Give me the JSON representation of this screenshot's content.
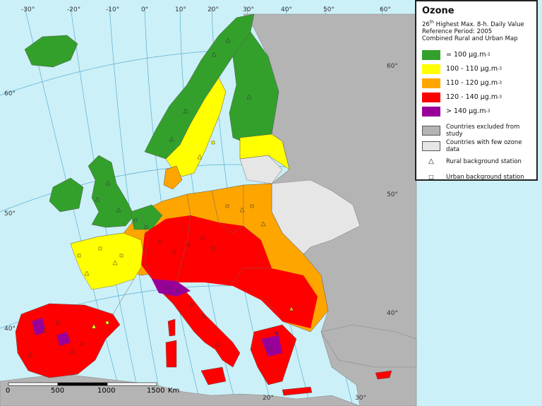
{
  "legend": {
    "title": "Ozone",
    "line1_pre": "26",
    "line1_sup": "th",
    "line1_post": " Highest Max. 8-h. Daily Value",
    "line2": "Reference Period: 2005",
    "line3": "Combined Rural and Urban Map",
    "classes": [
      {
        "label": "= 100 μg.m",
        "exp": "-3",
        "color": "#33a02c"
      },
      {
        "label": "100 - 110 μg.m",
        "exp": "-3",
        "color": "#ffff00"
      },
      {
        "label": "110 - 120 μg.m",
        "exp": "-3",
        "color": "#ffa500"
      },
      {
        "label": "120 - 140 μg.m",
        "exp": "-3",
        "color": "#ff0000"
      },
      {
        "label": "> 140 μg.m",
        "exp": "-3",
        "color": "#990099"
      }
    ],
    "excluded": {
      "label": "Countries excluded from study",
      "color": "#b4b4b4"
    },
    "fewdata": {
      "label": "Countries with few ozone data",
      "color": "#e6e6e6"
    },
    "rural": {
      "label": "Rural background station",
      "symbol": "triangle"
    },
    "urban": {
      "label": "Urban background station",
      "symbol": "square"
    }
  },
  "graticule": {
    "top": [
      "-30°",
      "-20°",
      "-10°",
      "0°",
      "10°",
      "20°",
      "30°",
      "40°",
      "50°",
      "60°"
    ],
    "left": [
      "60°",
      "50°",
      "40°"
    ],
    "right": [
      "60°",
      "50°",
      "40°"
    ],
    "bottom": [
      "20°",
      "30°"
    ]
  },
  "scalebar": {
    "labels": [
      "0",
      "500",
      "1000",
      "1500"
    ],
    "unit": "Km"
  },
  "colors": {
    "sea": "#ccf0f8",
    "other_land": "#b4b4b4"
  }
}
